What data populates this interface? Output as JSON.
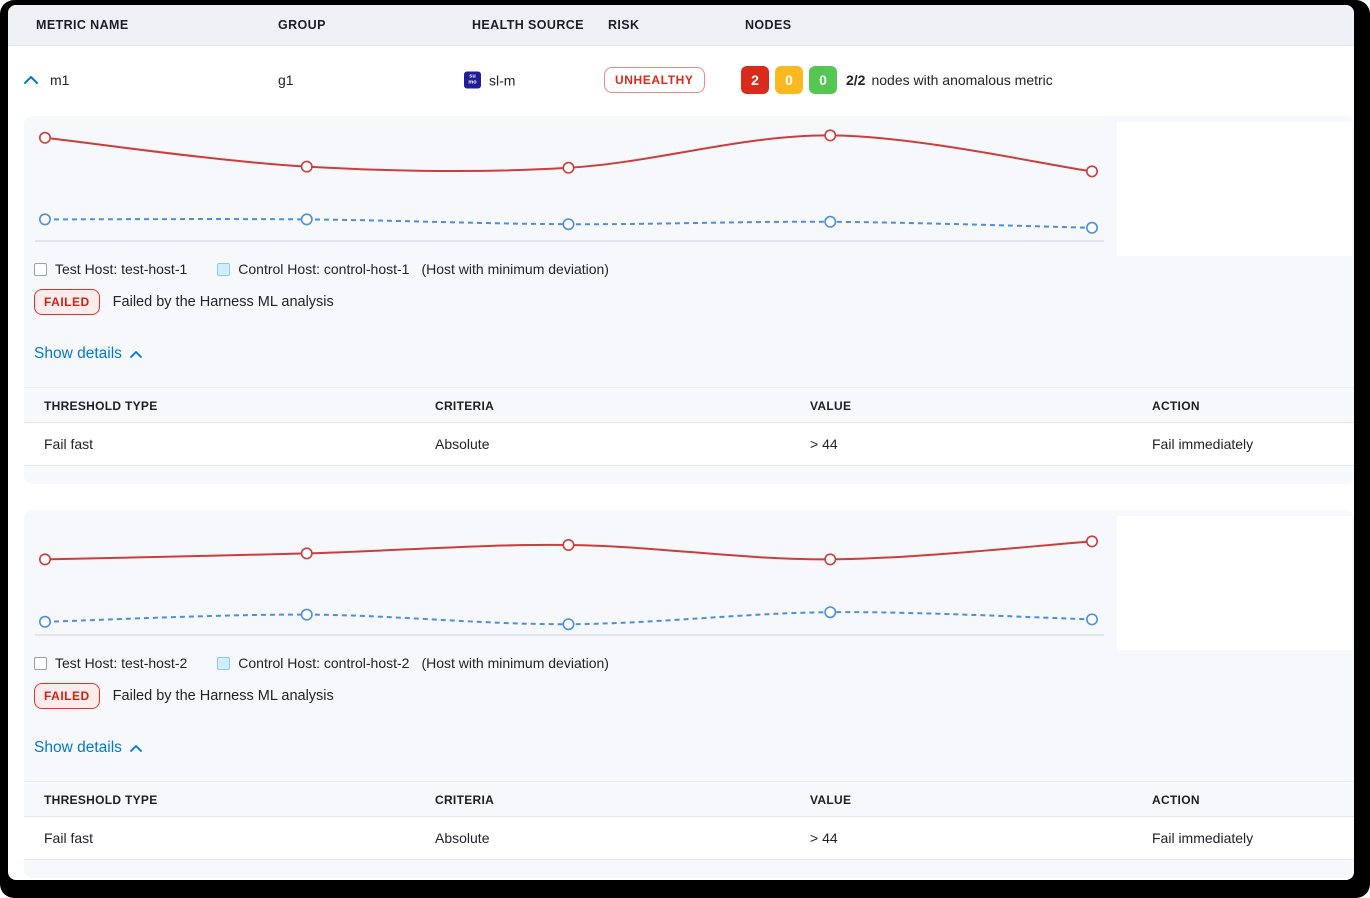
{
  "colors": {
    "primary_blue": "#0278d5",
    "risk_red": "#da291d",
    "node_red": "#da291d",
    "node_yellow": "#fbb91f",
    "node_green": "#53c654",
    "chart_red": "#ca3e3b",
    "chart_blue": "#4c90dd",
    "axis_line": "#ccd2de",
    "failed_bg": "#fdeceb",
    "failed_text": "#cf2318",
    "header_bg": "#eff1f6",
    "card_bg": "#f7f8fc"
  },
  "columns": {
    "metric_name": "METRIC NAME",
    "group": "GROUP",
    "health_source": "HEALTH SOURCE",
    "risk": "RISK",
    "nodes": "NODES"
  },
  "metric_row": {
    "name": "m1",
    "group": "g1",
    "health_source": {
      "label": "sl-m",
      "icon_line1": "su",
      "icon_line2": "mo"
    },
    "risk": "UNHEALTHY",
    "nodes": {
      "anomalous_count": "2",
      "warning_count": "0",
      "healthy_count": "0",
      "summary_bold": "2/2",
      "summary_text": "nodes with anomalous metric"
    }
  },
  "sections": [
    {
      "legend": {
        "test_label": "Test Host: test-host-1",
        "control_label": "Control Host: control-host-1",
        "note": "(Host with minimum deviation)"
      },
      "status": {
        "badge": "FAILED",
        "message": "Failed by the Harness ML analysis"
      },
      "details_link": "Show details",
      "table": {
        "headers": [
          "THRESHOLD TYPE",
          "CRITERIA",
          "VALUE",
          "ACTION"
        ],
        "rows": [
          [
            "Fail fast",
            "Absolute",
            "> 44",
            "Fail immediately"
          ]
        ]
      }
    },
    {
      "legend": {
        "test_label": "Test Host: test-host-2",
        "control_label": "Control Host: control-host-2",
        "note": "(Host with minimum deviation)"
      },
      "status": {
        "badge": "FAILED",
        "message": "Failed by the Harness ML analysis"
      },
      "details_link": "Show details",
      "table": {
        "headers": [
          "THRESHOLD TYPE",
          "CRITERIA",
          "VALUE",
          "ACTION"
        ],
        "rows": [
          [
            "Fail fast",
            "Absolute",
            "> 44",
            "Fail immediately"
          ]
        ]
      }
    }
  ],
  "chart_data": [
    {
      "type": "line",
      "x": [
        1,
        2,
        3,
        4,
        5
      ],
      "xlabel": "",
      "ylabel": "",
      "ylim": [
        0,
        100
      ],
      "grid": false,
      "legend_position": "bottom",
      "series": [
        {
          "name": "Test Host: test-host-1",
          "color": "#ca3e3b",
          "style": "solid",
          "values": [
            86,
            62,
            61,
            88,
            58
          ]
        },
        {
          "name": "Control Host: control-host-1",
          "color": "#4c90dd",
          "style": "dashed",
          "values": [
            18,
            18,
            14,
            16,
            11
          ]
        }
      ]
    },
    {
      "type": "line",
      "x": [
        1,
        2,
        3,
        4,
        5
      ],
      "xlabel": "",
      "ylabel": "",
      "ylim": [
        0,
        100
      ],
      "grid": false,
      "legend_position": "bottom",
      "series": [
        {
          "name": "Test Host: test-host-2",
          "color": "#ca3e3b",
          "style": "solid",
          "values": [
            63,
            68,
            75,
            63,
            78
          ]
        },
        {
          "name": "Control Host: control-host-2",
          "color": "#4c90dd",
          "style": "dashed",
          "values": [
            11,
            17,
            9,
            19,
            13
          ]
        }
      ]
    }
  ]
}
